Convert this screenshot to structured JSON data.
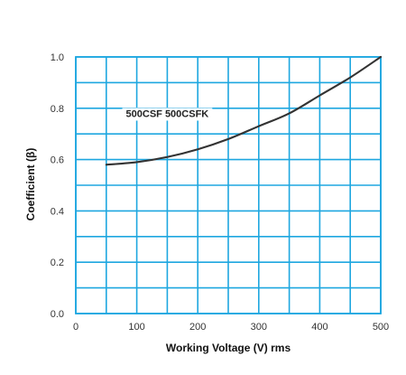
{
  "chart_data": {
    "type": "line",
    "title": "",
    "xlabel": "Working Voltage (V) rms",
    "ylabel": "Coefficient (β)",
    "xlim": [
      0,
      500
    ],
    "ylim": [
      0.0,
      1.0
    ],
    "x_ticks": [
      0,
      100,
      200,
      300,
      400,
      500
    ],
    "x_tick_labels": [
      "0",
      "100",
      "200",
      "300",
      "400",
      "500"
    ],
    "y_ticks": [
      0.0,
      0.2,
      0.4,
      0.6,
      0.8,
      1.0
    ],
    "y_tick_labels": [
      "0.0",
      "0.2",
      "0.4",
      "0.6",
      "0.8",
      "1.0"
    ],
    "grid": true,
    "grid_step_x": 50,
    "grid_step_y": 0.1,
    "grid_color": "#1ea7e0",
    "line_color": "#333333",
    "annotation": "500CSF 500CSFK",
    "annotation_x": 150,
    "annotation_y": 0.78,
    "series": [
      {
        "x": [
          50,
          100,
          150,
          200,
          250,
          300,
          350,
          400,
          450,
          500
        ],
        "values": [
          0.58,
          0.59,
          0.61,
          0.64,
          0.68,
          0.73,
          0.78,
          0.85,
          0.92,
          1.0
        ]
      }
    ]
  }
}
